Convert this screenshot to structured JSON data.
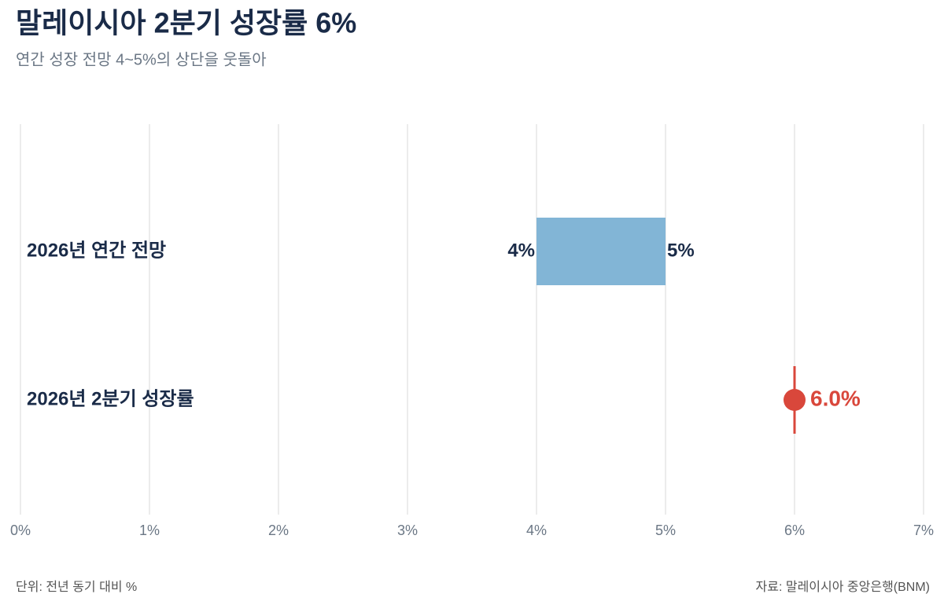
{
  "chart_data": {
    "type": "range-dot",
    "title": "말레이시아 2분기 성장률 6%",
    "subtitle": "연간 성장 전망 4~5%의 상단을 웃돌아",
    "categories": [
      "2026년 연간 전망",
      "2026년 2분기 성장률"
    ],
    "values": [
      [
        4,
        5
      ],
      6
    ],
    "value_labels": [
      [
        "4%",
        "5%"
      ],
      "6.0%"
    ],
    "colors": [
      "#82b5d6",
      "#d9473b"
    ],
    "xlim": [
      0,
      7
    ],
    "xticks": [
      {
        "value": 0,
        "label": "0%"
      },
      {
        "value": 1,
        "label": "1%"
      },
      {
        "value": 2,
        "label": "2%"
      },
      {
        "value": 3,
        "label": "3%"
      },
      {
        "value": 4,
        "label": "4%"
      },
      {
        "value": 5,
        "label": "5%"
      },
      {
        "value": 6,
        "label": "6%"
      },
      {
        "value": 7,
        "label": "7%"
      }
    ],
    "grid": true,
    "note": "단위: 전년 동기 대비 %",
    "source": "자료: 말레이시아 중앙은행(BNM)"
  }
}
